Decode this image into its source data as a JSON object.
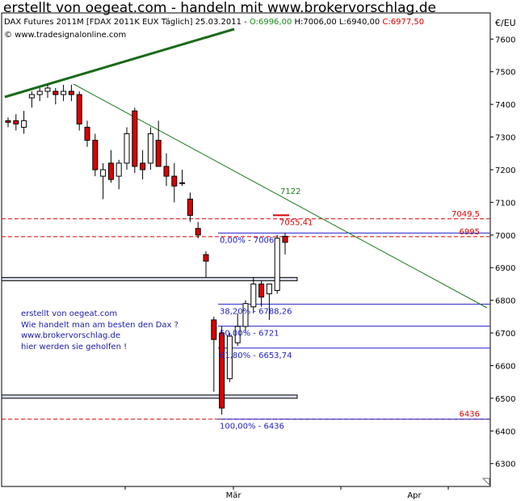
{
  "page_title": "erstellt von oegeat.com - handeln mit www.brokervorschlag.de",
  "header": {
    "instrument": "DAX Futures 2011M [FDAX 2011K EUX  Täglich] 25.03.2011 - ",
    "open": "O:6996,00",
    "hl": " H:7006,00 L:6940,00 ",
    "close": "C:6977,50",
    "source": "© www.tradesignalonline.com"
  },
  "colors": {
    "up": "#ffffff",
    "down": "#dd0000",
    "green": "#1a7a1a",
    "blue": "#2222cc",
    "red": "#dd0000",
    "box_fill": "#d8dcea"
  },
  "annotation": {
    "lines": [
      "erstellt von oegeat.com",
      "Wie handelt man am besten den Dax ?",
      "www.brokervorschlag.de",
      "hier werden sie geholfen !"
    ]
  },
  "chart_data": {
    "type": "candlestick",
    "currency_label": "€/EU",
    "ylim": [
      6230,
      7680
    ],
    "y_ticks": [
      7600,
      7500,
      7400,
      7300,
      7200,
      7100,
      7000,
      6900,
      6800,
      6700,
      6600,
      6500,
      6400,
      6300
    ],
    "x_labels": [
      "Mär",
      "Apr"
    ],
    "candles": [
      {
        "o": 7350,
        "h": 7360,
        "l": 7330,
        "c": 7345
      },
      {
        "o": 7350,
        "h": 7370,
        "l": 7320,
        "c": 7340
      },
      {
        "o": 7330,
        "h": 7380,
        "l": 7310,
        "c": 7350
      },
      {
        "o": 7420,
        "h": 7440,
        "l": 7390,
        "c": 7430
      },
      {
        "o": 7430,
        "h": 7450,
        "l": 7410,
        "c": 7440
      },
      {
        "o": 7440,
        "h": 7460,
        "l": 7420,
        "c": 7450
      },
      {
        "o": 7440,
        "h": 7450,
        "l": 7400,
        "c": 7430
      },
      {
        "o": 7430,
        "h": 7460,
        "l": 7410,
        "c": 7440
      },
      {
        "o": 7440,
        "h": 7460,
        "l": 7410,
        "c": 7430
      },
      {
        "o": 7430,
        "h": 7440,
        "l": 7320,
        "c": 7340
      },
      {
        "o": 7330,
        "h": 7350,
        "l": 7270,
        "c": 7290
      },
      {
        "o": 7290,
        "h": 7310,
        "l": 7180,
        "c": 7200
      },
      {
        "o": 7180,
        "h": 7220,
        "l": 7110,
        "c": 7200
      },
      {
        "o": 7220,
        "h": 7260,
        "l": 7160,
        "c": 7170
      },
      {
        "o": 7180,
        "h": 7230,
        "l": 7140,
        "c": 7220
      },
      {
        "o": 7220,
        "h": 7330,
        "l": 7200,
        "c": 7310
      },
      {
        "o": 7380,
        "h": 7390,
        "l": 7190,
        "c": 7210
      },
      {
        "o": 7220,
        "h": 7260,
        "l": 7170,
        "c": 7200
      },
      {
        "o": 7220,
        "h": 7330,
        "l": 7200,
        "c": 7310
      },
      {
        "o": 7290,
        "h": 7350,
        "l": 7210,
        "c": 7210
      },
      {
        "o": 7210,
        "h": 7250,
        "l": 7150,
        "c": 7180
      },
      {
        "o": 7180,
        "h": 7220,
        "l": 7100,
        "c": 7150
      },
      {
        "o": 7160,
        "h": 7200,
        "l": 7150,
        "c": 7160
      },
      {
        "o": 7110,
        "h": 7130,
        "l": 7040,
        "c": 7060
      },
      {
        "o": 7020,
        "h": 7040,
        "l": 6990,
        "c": 7000
      },
      {
        "o": 6940,
        "h": 6950,
        "l": 6870,
        "c": 6920
      },
      {
        "o": 6740,
        "h": 6750,
        "l": 6520,
        "c": 6680
      },
      {
        "o": 6700,
        "h": 6720,
        "l": 6450,
        "c": 6470
      },
      {
        "o": 6560,
        "h": 6700,
        "l": 6550,
        "c": 6690
      },
      {
        "o": 6670,
        "h": 6760,
        "l": 6660,
        "c": 6720
      },
      {
        "o": 6720,
        "h": 6800,
        "l": 6700,
        "c": 6790
      },
      {
        "o": 6780,
        "h": 6870,
        "l": 6760,
        "c": 6850
      },
      {
        "o": 6850,
        "h": 6860,
        "l": 6780,
        "c": 6810
      },
      {
        "o": 6820,
        "h": 6850,
        "l": 6740,
        "c": 6850
      },
      {
        "o": 6830,
        "h": 7000,
        "l": 6820,
        "c": 6990
      },
      {
        "o": 6996,
        "h": 7006,
        "l": 6940,
        "c": 6977.5
      }
    ],
    "trendlines": [
      {
        "name": "green-resistance",
        "label": "7122",
        "p1": [
          0,
          7425
        ],
        "p2": [
          34,
          7122
        ],
        "p3": [
          68,
          6780
        ]
      },
      {
        "name": "dark-green-support",
        "p1": [
          0,
          7425
        ],
        "p2": [
          21,
          7600
        ]
      }
    ],
    "hlines": [
      {
        "price": 7049.5,
        "label": "7049,5",
        "style": "red-dashed"
      },
      {
        "price": 6995,
        "label": "6995",
        "style": "red-dashed"
      },
      {
        "price": 6436,
        "label": "6436",
        "style": "red-dashed"
      }
    ],
    "fibonacci": [
      {
        "price": 7006,
        "label": "0,00% - 7006"
      },
      {
        "price": 6788.26,
        "label": "38,20% - 6788,26"
      },
      {
        "price": 6721,
        "label": "50,00% - 6721"
      },
      {
        "price": 6653.74,
        "label": "61,80% - 6653,74"
      },
      {
        "price": 6436,
        "label": "100,00% - 6436"
      }
    ],
    "boxes": [
      {
        "from": 6870,
        "to": 6860
      },
      {
        "from": 6510,
        "to": 6500
      }
    ],
    "extra_labels": [
      {
        "text": "7055,41",
        "price": 7055.41
      }
    ]
  }
}
